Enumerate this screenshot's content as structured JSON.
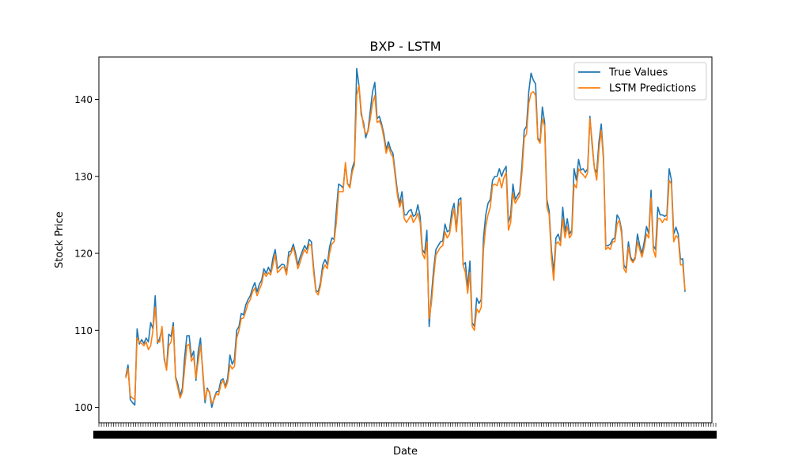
{
  "chart_data": {
    "type": "line",
    "title": "BXP - LSTM",
    "xlabel": "Date",
    "ylabel": "Stock Price",
    "ylim": [
      98,
      145.5
    ],
    "yticks": [
      100,
      110,
      120,
      130,
      140
    ],
    "legend_position": "top-right",
    "grid": false,
    "x_tick_labels_overlapping": true,
    "x_tick_count": 252,
    "series": [
      {
        "name": "True Values",
        "color": "#1f77b4",
        "values": [
          104.0,
          105.5,
          101.0,
          100.6,
          100.3,
          110.2,
          108.2,
          108.8,
          108.3,
          109.0,
          108.5,
          111.0,
          110.2,
          114.5,
          108.3,
          109.0,
          110.2,
          106.2,
          105.0,
          109.5,
          109.2,
          111.0,
          104.0,
          103.0,
          101.5,
          102.5,
          106.5,
          109.3,
          109.3,
          106.5,
          107.3,
          103.5,
          107.3,
          109.0,
          104.5,
          100.6,
          102.5,
          101.9,
          100.0,
          101.2,
          102.0,
          102.1,
          103.5,
          103.7,
          102.7,
          103.8,
          106.8,
          105.6,
          106.2,
          110.0,
          110.5,
          112.2,
          112.0,
          113.3,
          114.0,
          114.5,
          115.5,
          116.2,
          115.0,
          116.0,
          116.5,
          118.0,
          117.4,
          118.2,
          117.5,
          119.4,
          120.5,
          118.0,
          118.3,
          118.6,
          118.5,
          117.5,
          120.2,
          120.3,
          121.2,
          120.0,
          118.5,
          119.5,
          120.3,
          121.0,
          120.5,
          121.8,
          121.5,
          118.0,
          115.2,
          115.0,
          116.2,
          118.5,
          119.2,
          118.5,
          120.8,
          122.0,
          121.8,
          125.5,
          129.0,
          128.8,
          128.5,
          131.5,
          129.0,
          128.8,
          131.0,
          132.0,
          144.0,
          141.8,
          138.0,
          137.0,
          135.0,
          136.0,
          138.5,
          141.0,
          142.2,
          137.5,
          137.8,
          136.8,
          135.5,
          133.5,
          134.5,
          133.5,
          133.0,
          130.5,
          128.0,
          126.5,
          128.0,
          125.0,
          125.0,
          125.5,
          125.7,
          124.8,
          125.0,
          126.3,
          124.8,
          120.5,
          120.0,
          123.0,
          110.5,
          114.5,
          118.0,
          120.5,
          121.0,
          121.5,
          121.6,
          123.8,
          122.8,
          123.0,
          125.5,
          126.5,
          123.0,
          127.0,
          127.2,
          118.5,
          118.8,
          115.5,
          119.0,
          111.0,
          110.5,
          114.2,
          113.5,
          114.0,
          122.0,
          125.0,
          126.5,
          127.0,
          129.5,
          130.0,
          130.0,
          131.0,
          130.0,
          130.8,
          131.3,
          124.0,
          125.0,
          129.0,
          127.0,
          127.5,
          128.0,
          131.5,
          136.0,
          136.5,
          141.0,
          143.4,
          142.5,
          142.0,
          135.0,
          134.5,
          139.0,
          137.0,
          127.0,
          125.5,
          120.5,
          117.5,
          122.0,
          122.5,
          121.5,
          126.0,
          122.8,
          124.5,
          122.5,
          123.0,
          131.0,
          129.5,
          132.2,
          130.8,
          131.0,
          130.5,
          131.0,
          137.8,
          134.0,
          131.0,
          130.5,
          134.5,
          136.8,
          132.5,
          121.0,
          121.0,
          121.2,
          121.8,
          122.0,
          125.0,
          124.5,
          123.0,
          118.5,
          118.0,
          121.5,
          119.5,
          119.0,
          119.5,
          122.5,
          121.0,
          120.0,
          121.5,
          123.5,
          122.5,
          128.2,
          121.0,
          120.5,
          126.0,
          125.0,
          125.0,
          124.8,
          125.0,
          131.0,
          129.5,
          122.5,
          123.4,
          122.5,
          119.2,
          119.3,
          115.0
        ]
      },
      {
        "name": "LSTM Predictions",
        "color": "#ff7f0e",
        "values": [
          103.8,
          105.0,
          101.5,
          101.2,
          101.0,
          109.0,
          108.5,
          108.3,
          108.0,
          108.5,
          107.5,
          108.0,
          110.0,
          113.0,
          108.5,
          108.5,
          110.5,
          106.5,
          104.8,
          108.0,
          108.5,
          110.5,
          103.8,
          102.5,
          101.2,
          102.0,
          105.0,
          108.0,
          108.2,
          106.0,
          106.5,
          103.8,
          106.0,
          108.0,
          105.0,
          101.0,
          102.3,
          102.0,
          100.5,
          101.0,
          101.8,
          101.6,
          103.0,
          103.5,
          102.5,
          103.3,
          105.5,
          105.0,
          105.3,
          109.0,
          110.0,
          111.5,
          111.6,
          112.5,
          113.5,
          114.0,
          115.0,
          115.5,
          114.5,
          115.3,
          116.0,
          117.5,
          117.0,
          117.5,
          117.2,
          118.5,
          119.8,
          117.5,
          117.8,
          118.2,
          118.2,
          117.2,
          119.5,
          120.0,
          120.8,
          119.5,
          118.0,
          118.8,
          119.8,
          120.5,
          120.0,
          121.2,
          121.0,
          117.5,
          115.0,
          114.6,
          115.8,
          117.8,
          118.5,
          118.0,
          120.0,
          121.2,
          121.5,
          124.0,
          128.0,
          128.0,
          128.0,
          131.8,
          129.0,
          128.5,
          130.5,
          131.5,
          140.5,
          141.8,
          138.5,
          136.5,
          135.5,
          135.8,
          137.5,
          139.5,
          140.5,
          137.0,
          137.2,
          136.5,
          135.0,
          133.0,
          134.0,
          133.0,
          132.5,
          130.0,
          127.5,
          126.0,
          127.0,
          124.5,
          124.0,
          124.5,
          125.0,
          124.0,
          124.5,
          125.2,
          124.0,
          120.0,
          119.3,
          121.5,
          111.5,
          113.5,
          117.0,
          119.8,
          120.3,
          120.8,
          121.0,
          122.8,
          122.0,
          122.5,
          124.5,
          125.8,
          122.8,
          126.0,
          126.8,
          118.5,
          117.5,
          114.8,
          117.5,
          110.5,
          110.0,
          112.8,
          112.3,
          113.0,
          120.5,
          123.5,
          125.0,
          126.0,
          128.8,
          129.0,
          128.8,
          129.8,
          128.5,
          129.8,
          130.5,
          123.0,
          124.0,
          127.8,
          126.5,
          127.0,
          127.5,
          130.5,
          135.0,
          135.5,
          139.5,
          140.8,
          141.0,
          140.5,
          134.8,
          134.3,
          137.5,
          136.5,
          126.0,
          125.0,
          119.5,
          116.5,
          121.2,
          121.5,
          121.0,
          124.5,
          122.0,
          123.5,
          122.0,
          122.5,
          129.0,
          128.5,
          131.0,
          130.5,
          130.2,
          129.8,
          130.5,
          137.5,
          134.5,
          131.0,
          129.5,
          133.5,
          136.0,
          132.0,
          120.5,
          120.8,
          120.5,
          121.5,
          121.5,
          123.8,
          124.3,
          122.5,
          118.0,
          117.5,
          120.8,
          119.2,
          118.8,
          119.3,
          121.5,
          120.5,
          119.5,
          120.8,
          122.5,
          122.0,
          127.2,
          120.5,
          119.5,
          124.5,
          124.5,
          124.0,
          124.5,
          124.3,
          129.5,
          129.0,
          121.5,
          122.3,
          122.0,
          118.5,
          118.5,
          115.2
        ]
      }
    ]
  }
}
